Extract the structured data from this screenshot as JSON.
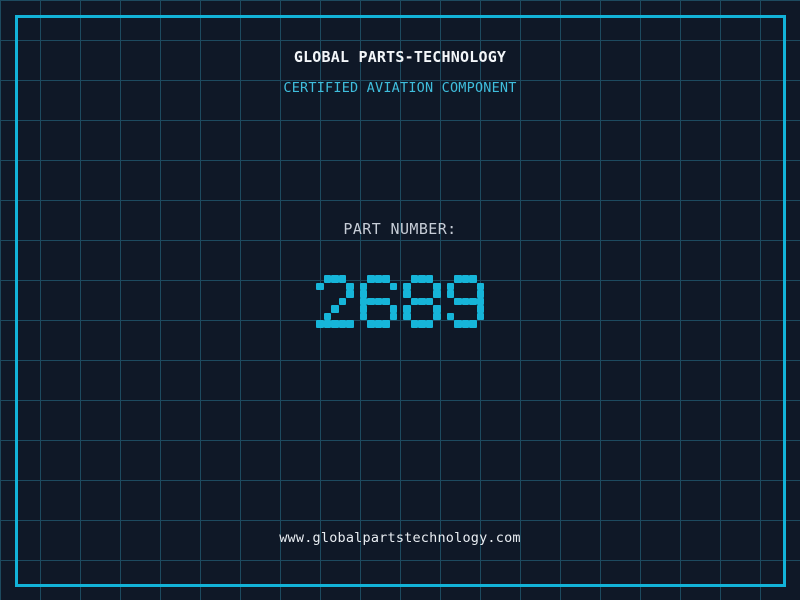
{
  "header": {
    "title": "GLOBAL PARTS-TECHNOLOGY",
    "subtitle": "CERTIFIED AVIATION COMPONENT"
  },
  "part": {
    "label": "PART NUMBER:",
    "number": "2689"
  },
  "footer": {
    "url": "www.globalpartstechnology.com"
  },
  "colors": {
    "background": "#0f1827",
    "grid_line": "#1d4a5f",
    "frame_accent": "#12b2d8",
    "digit_cyan": "#16b5d9",
    "subtitle_cyan": "#3fbedd",
    "title_white": "#f3f6f9",
    "label_gray": "#c7cdd7",
    "url_white": "#e9edf2"
  }
}
